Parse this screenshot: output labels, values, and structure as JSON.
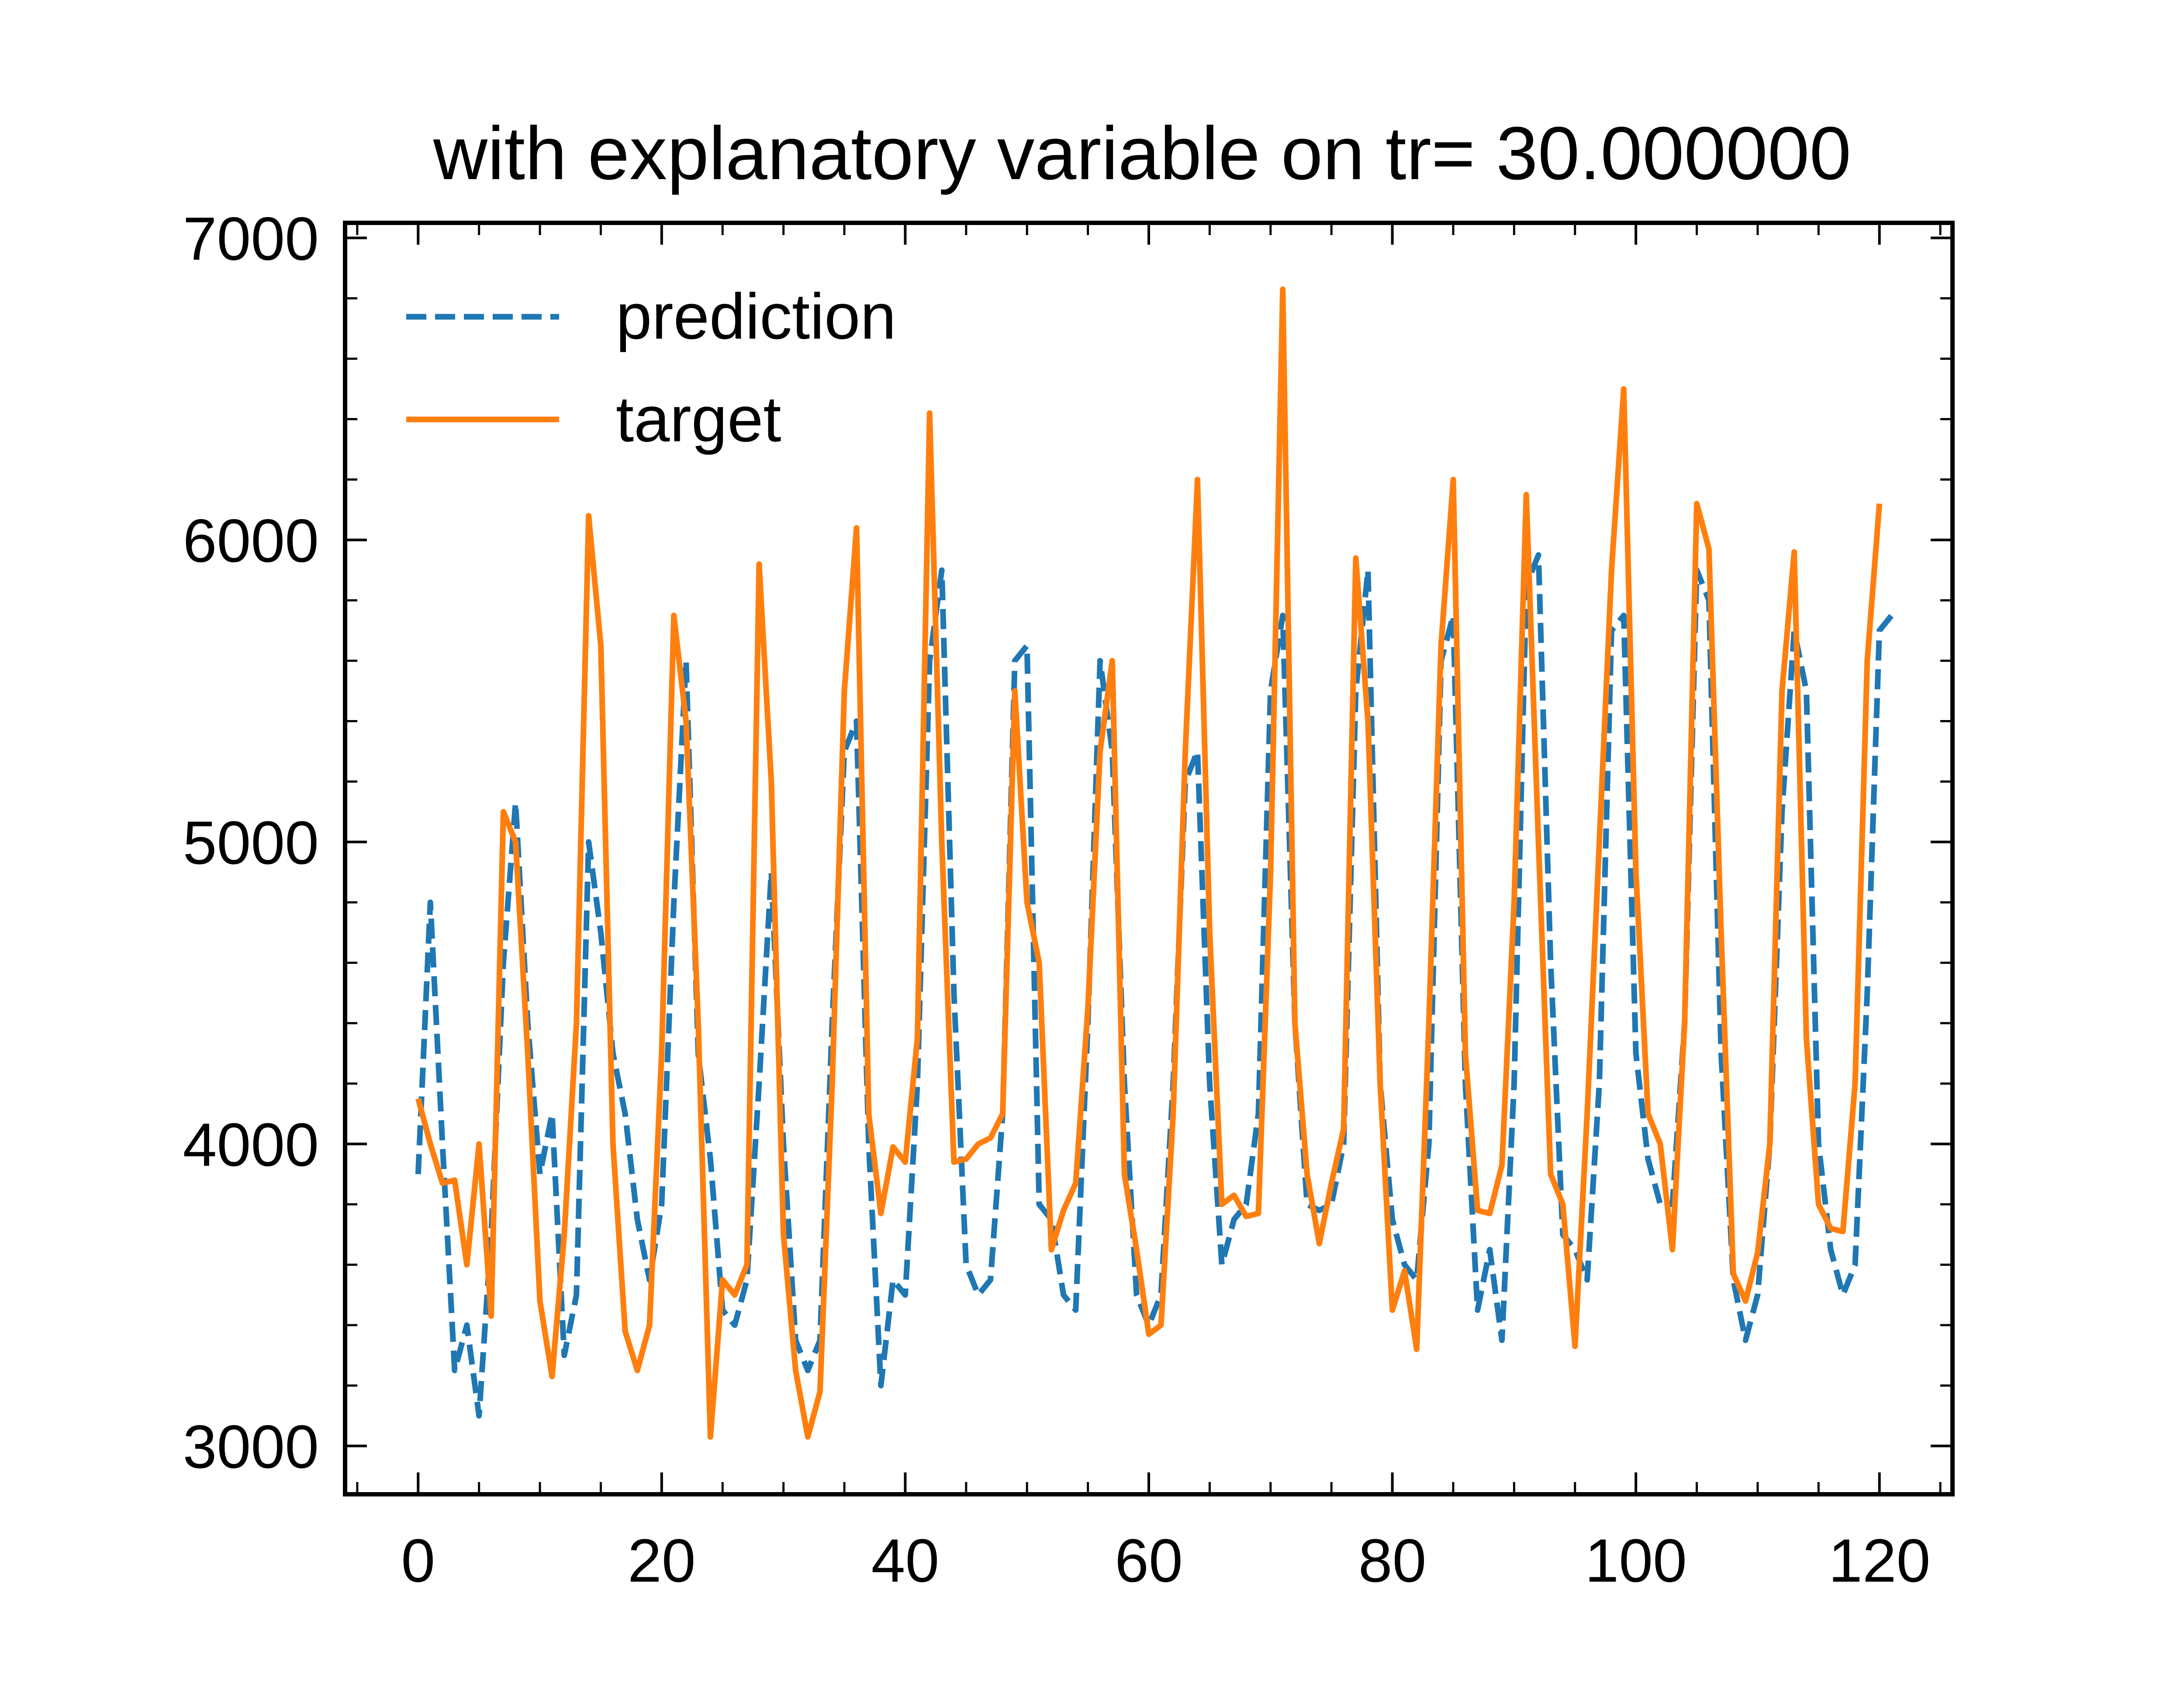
{
  "chart_data": {
    "type": "line",
    "title": "with explanatory variable on tr= 30.000000",
    "xlabel": "",
    "ylabel": "",
    "xlim": [
      -6,
      126
    ],
    "ylim": [
      2840,
      7050
    ],
    "x_ticks": [
      0,
      20,
      40,
      60,
      80,
      100,
      120
    ],
    "y_ticks": [
      3000,
      4000,
      5000,
      6000,
      7000
    ],
    "grid": false,
    "legend": "top-left",
    "series": [
      {
        "name": "prediction",
        "color": "#1f77b4",
        "style": "dashed",
        "x_start": 0,
        "x_step": 1,
        "values": [
          3900,
          4800,
          4000,
          3250,
          3400,
          3100,
          3700,
          4600,
          5130,
          4400,
          3900,
          4100,
          3300,
          3500,
          5000,
          4700,
          4300,
          4100,
          3750,
          3550,
          3800,
          4800,
          5600,
          4300,
          3950,
          3450,
          3400,
          3550,
          4200,
          4900,
          4000,
          3350,
          3250,
          3350,
          4400,
          5300,
          5400,
          4000,
          3200,
          3550,
          3500,
          4200,
          5600,
          5900,
          4500,
          3600,
          3500,
          3550,
          4100,
          5600,
          5650,
          3800,
          3750,
          3500,
          3450,
          4400,
          5600,
          5300,
          4200,
          3500,
          3400,
          3500,
          4200,
          5200,
          5300,
          4200,
          3600,
          3750,
          3800,
          4100,
          5500,
          5750,
          4400,
          3800,
          3780,
          3800,
          4000,
          5500,
          5900,
          4200,
          3750,
          3600,
          3550,
          4000,
          5600,
          5750,
          4200,
          3450,
          3650,
          3350,
          4200,
          5850,
          5950,
          4600,
          3700,
          3650,
          3550,
          4200,
          5700,
          5750,
          4300,
          3950,
          3800,
          3800,
          4400,
          5900,
          5800,
          4300,
          3550,
          3350,
          3500,
          4000,
          5100,
          5700,
          5500,
          4000,
          3650,
          3500,
          3600,
          4500,
          5700,
          5750
        ]
      },
      {
        "name": "target",
        "color": "#ff7f0e",
        "style": "solid",
        "x_start": 0,
        "x_step": 1,
        "values": [
          4150,
          4000,
          3870,
          3880,
          3600,
          4000,
          3430,
          5100,
          5000,
          4300,
          3480,
          3230,
          3700,
          4400,
          6080,
          5650,
          4000,
          3380,
          3250,
          3400,
          4300,
          5750,
          5400,
          4400,
          3030,
          3550,
          3500,
          3600,
          5920,
          5200,
          3700,
          3250,
          3030,
          3180,
          4200,
          5500,
          6040,
          4100,
          3770,
          3990,
          3940,
          4350,
          6420,
          5000,
          3940,
          3950,
          4000,
          4020,
          4100,
          5500,
          4800,
          4600,
          3650,
          3780,
          3870,
          4450,
          5300,
          5600,
          3900,
          3650,
          3370,
          3400,
          4100,
          5300,
          6200,
          4700,
          3800,
          3830,
          3760,
          3770,
          4900,
          6830,
          4400,
          3900,
          3670,
          3870,
          4050,
          5940,
          5400,
          4200,
          3450,
          3580,
          3320,
          4400,
          5650,
          6200,
          4300,
          3780,
          3770,
          3930,
          4800,
          6150,
          5000,
          3900,
          3800,
          3330,
          4100,
          5000,
          5900,
          6500,
          4900,
          4100,
          4000,
          3650,
          4400,
          6120,
          5970,
          4700,
          3570,
          3480,
          3640,
          4000,
          5500,
          5960,
          4350,
          3800,
          3720,
          3710,
          4200,
          5600,
          6120
        ]
      }
    ]
  }
}
